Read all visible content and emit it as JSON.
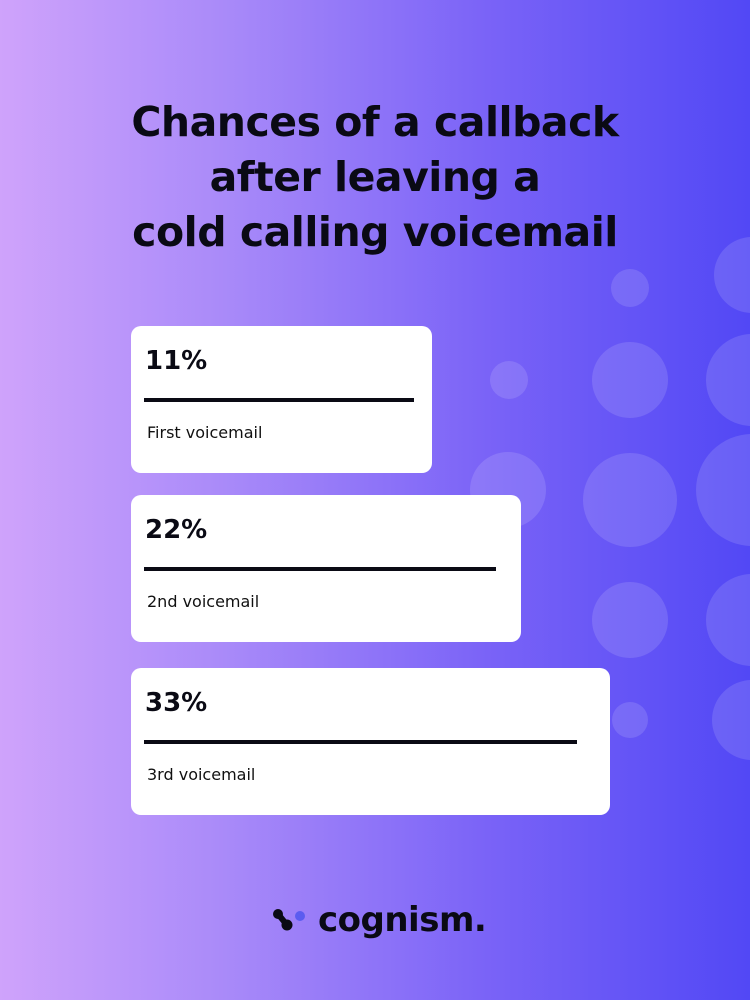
{
  "title_lines": [
    "Chances of a callback",
    "after leaving a",
    "cold calling voicemail"
  ],
  "chart_data": {
    "type": "bar",
    "orientation": "horizontal",
    "categories": [
      "First voicemail",
      "2nd voicemail",
      "3rd voicemail"
    ],
    "values": [
      11,
      22,
      33
    ],
    "value_labels": [
      "11%",
      "22%",
      "33%"
    ],
    "unit": "%"
  },
  "colors": {
    "bar": "#0a0a14",
    "card": "#ffffff",
    "gradient_start": "#cfa3fb",
    "gradient_end": "#5248f5",
    "logo_dot": "#5b5cf0"
  },
  "logo": {
    "text": "cognism."
  }
}
